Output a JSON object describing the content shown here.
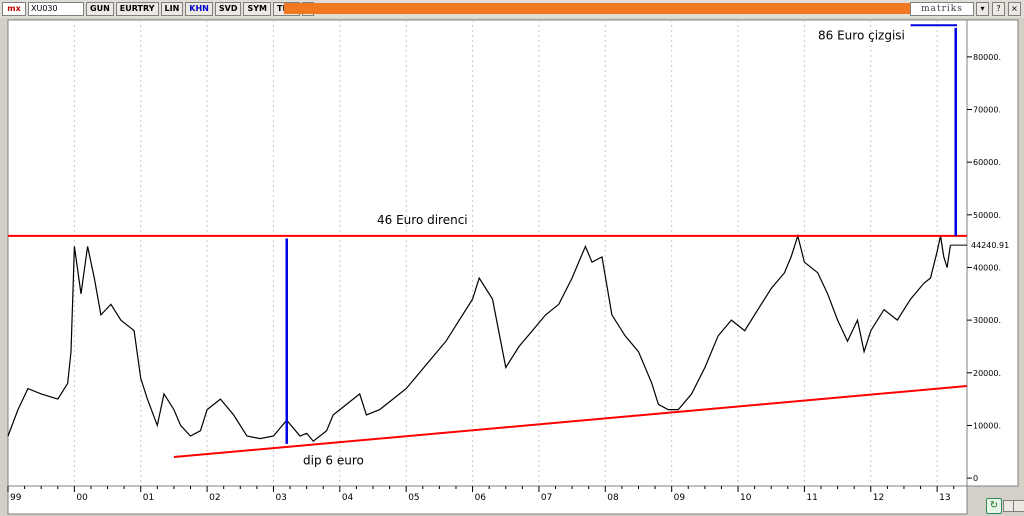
{
  "toolbar": {
    "logo": "mx",
    "symbol": "XU030",
    "buttons": [
      {
        "label": "GUN",
        "active": false
      },
      {
        "label": "EURTRY",
        "active": false
      },
      {
        "label": "LIN",
        "active": false
      },
      {
        "label": "KHN",
        "active": true
      },
      {
        "label": "SVD",
        "active": false
      },
      {
        "label": "SYM",
        "active": false
      },
      {
        "label": "TMP",
        "active": false
      }
    ],
    "dropdown_glyph": "▾",
    "brand": "matriks",
    "controls": [
      "▾",
      "?",
      "×"
    ]
  },
  "colors": {
    "line": "#000000",
    "resistance": "#ff0000",
    "support": "#ff0000",
    "measure": "#0000e0",
    "plot_bg": "#ffffff",
    "grid": "#c8c8c8",
    "accent_bar": "#f07820"
  },
  "chart_data": {
    "type": "line",
    "title": "",
    "xlabel": "",
    "ylabel": "",
    "x_ticks": [
      "99",
      "00",
      "01",
      "02",
      "03",
      "04",
      "05",
      "06",
      "07",
      "08",
      "09",
      "10",
      "11",
      "12",
      "13"
    ],
    "y_ticks": [
      "0",
      "10000.",
      "20000.",
      "30000.",
      "40000.",
      "50000.",
      "60000.",
      "70000.",
      "80000."
    ],
    "ylim": [
      -1500,
      87000
    ],
    "xlim": [
      1999.0,
      2013.45
    ],
    "last_value_label": "44240.91",
    "grid": "vertical only",
    "series": [
      {
        "x": [
          1999.0,
          1999.15,
          1999.3,
          1999.5,
          1999.75,
          1999.9,
          1999.95,
          2000.0,
          2000.1,
          2000.2,
          2000.3,
          2000.4,
          2000.55,
          2000.7,
          2000.9,
          2001.0,
          2001.1,
          2001.25,
          2001.35,
          2001.5,
          2001.6,
          2001.75,
          2001.9,
          2002.0,
          2002.2,
          2002.4,
          2002.6,
          2002.8,
          2003.0,
          2003.2,
          2003.4,
          2003.5,
          2003.6,
          2003.8,
          2003.9,
          2004.1,
          2004.3,
          2004.4,
          2004.6,
          2004.8,
          2005.0,
          2005.2,
          2005.4,
          2005.6,
          2005.8,
          2006.0,
          2006.1,
          2006.2,
          2006.3,
          2006.5,
          2006.7,
          2006.9,
          2007.1,
          2007.3,
          2007.5,
          2007.7,
          2007.8,
          2007.95,
          2008.1,
          2008.3,
          2008.5,
          2008.7,
          2008.8,
          2008.95,
          2009.1,
          2009.3,
          2009.5,
          2009.7,
          2009.9,
          2010.1,
          2010.3,
          2010.5,
          2010.7,
          2010.8,
          2010.9,
          2011.0,
          2011.2,
          2011.35,
          2011.5,
          2011.65,
          2011.8,
          2011.9,
          2012.0,
          2012.2,
          2012.4,
          2012.6,
          2012.8,
          2012.9,
          2013.0,
          2013.05,
          2013.1,
          2013.15,
          2013.2
        ],
        "values": [
          8000,
          13000,
          17000,
          16000,
          15000,
          18000,
          24000,
          44000,
          35000,
          44000,
          38000,
          31000,
          33000,
          30000,
          28000,
          19000,
          15000,
          10000,
          16000,
          13000,
          10000,
          8000,
          9000,
          13000,
          15000,
          12000,
          8000,
          7500,
          8000,
          11000,
          8000,
          8500,
          7000,
          9000,
          12000,
          14000,
          16000,
          12000,
          13000,
          15000,
          17000,
          20000,
          23000,
          26000,
          30000,
          34000,
          38000,
          36000,
          34000,
          21000,
          25000,
          28000,
          31000,
          33000,
          38000,
          44000,
          41000,
          42000,
          31000,
          27000,
          24000,
          18000,
          14000,
          13000,
          13000,
          16000,
          21000,
          27000,
          30000,
          28000,
          32000,
          36000,
          39000,
          42000,
          46000,
          41000,
          39000,
          35000,
          30000,
          26000,
          30000,
          24000,
          28000,
          32000,
          30000,
          34000,
          37000,
          38000,
          43000,
          46000,
          42000,
          40000,
          44240
        ]
      }
    ],
    "annotations": [
      {
        "text": "86 Euro çizgisi",
        "type": "hline",
        "y": 86000,
        "x_from": 2012.6,
        "x_to": 2013.3
      },
      {
        "text": "46 Euro direnci",
        "type": "hline",
        "y": 46000,
        "x_from": 1999.0,
        "x_to": 2013.45
      },
      {
        "text": "dip 6 euro",
        "type": "trendline",
        "x_from": 2001.5,
        "y_from": 4000,
        "x_to": 2013.45,
        "y_to": 17500
      },
      {
        "text": "",
        "type": "vline",
        "x": 2003.2,
        "y_from": 6500,
        "y_to": 45500
      },
      {
        "text": "",
        "type": "vline",
        "x": 2013.28,
        "y_from": 46000,
        "y_to": 85500
      }
    ]
  }
}
